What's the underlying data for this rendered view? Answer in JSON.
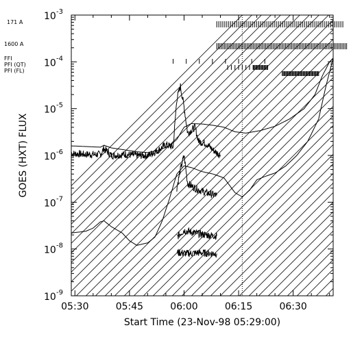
{
  "chart_data": {
    "type": "line",
    "title": "",
    "xlabel": "Start Time (23-Nov-98 05:29:00)",
    "ylabel": "GOES (HXT) FLUX",
    "x_unit": "minutes (UT)",
    "xlim": [
      "05:29",
      "06:41"
    ],
    "ylim": [
      1e-09,
      0.001
    ],
    "yscale": "log",
    "grid": false,
    "x_ticks": [
      "05:30",
      "05:45",
      "06:00",
      "06:15",
      "06:30"
    ],
    "y_ticks": [
      {
        "base": "10",
        "exp": "-9",
        "value": 1e-09
      },
      {
        "base": "10",
        "exp": "-8",
        "value": 1e-08
      },
      {
        "base": "10",
        "exp": "-7",
        "value": 1e-07
      },
      {
        "base": "10",
        "exp": "-6",
        "value": 1e-06
      },
      {
        "base": "10",
        "exp": "-5",
        "value": 1e-05
      },
      {
        "base": "10",
        "exp": "-4",
        "value": 0.0001
      },
      {
        "base": "10",
        "exp": "-3",
        "value": 0.001
      }
    ],
    "coverage_rows": [
      {
        "label": "171 A"
      },
      {
        "label": "1600 A"
      },
      {
        "label": "FFI"
      },
      {
        "label": "PFI (QT)"
      },
      {
        "label": "PFI (FL)"
      }
    ],
    "data_gap_start": "06:16",
    "series": [
      {
        "style": "solid",
        "points": [
          [
            "05:29",
            1.6e-06
          ],
          [
            "05:33",
            1.55e-06
          ],
          [
            "05:37",
            1.5e-06
          ],
          [
            "05:38",
            1.65e-06
          ],
          [
            "05:40",
            1.45e-06
          ],
          [
            "05:44",
            1.3e-06
          ],
          [
            "05:47",
            1.2e-06
          ],
          [
            "05:50",
            1.15e-06
          ],
          [
            "05:53",
            1.3e-06
          ],
          [
            "05:56",
            1.6e-06
          ],
          [
            "05:58",
            2.2e-06
          ],
          [
            "06:00",
            4e-06
          ],
          [
            "06:02",
            4.8e-06
          ],
          [
            "06:05",
            4.7e-06
          ],
          [
            "06:08",
            4.4e-06
          ],
          [
            "06:11",
            4e-06
          ],
          [
            "06:14",
            3.2e-06
          ],
          [
            "06:17",
            3e-06
          ],
          [
            "06:21",
            3.4e-06
          ],
          [
            "06:25",
            4.2e-06
          ],
          [
            "06:29",
            6e-06
          ],
          [
            "06:33",
            1e-05
          ],
          [
            "06:36",
            2e-05
          ],
          [
            "06:38",
            5e-05
          ],
          [
            "06:40",
            0.0001
          ],
          [
            "06:41",
            0.00012
          ]
        ]
      },
      {
        "style": "solid",
        "points": [
          [
            "05:29",
            2.2e-08
          ],
          [
            "05:33",
            2.4e-08
          ],
          [
            "05:35",
            2.8e-08
          ],
          [
            "05:37",
            3.8e-08
          ],
          [
            "05:38",
            4e-08
          ],
          [
            "05:40",
            3e-08
          ],
          [
            "05:43",
            2.2e-08
          ],
          [
            "05:45",
            1.5e-08
          ],
          [
            "05:47",
            1.2e-08
          ],
          [
            "05:50",
            1.35e-08
          ],
          [
            "05:52",
            1.8e-08
          ],
          [
            "05:54",
            4e-08
          ],
          [
            "05:56",
            1.2e-07
          ],
          [
            "05:58",
            4e-07
          ],
          [
            "06:00",
            6e-07
          ],
          [
            "06:02",
            5.5e-07
          ],
          [
            "06:05",
            4.5e-07
          ],
          [
            "06:08",
            4e-07
          ],
          [
            "06:11",
            3.3e-07
          ],
          [
            "06:14",
            1.6e-07
          ],
          [
            "06:16",
            1.3e-07
          ],
          [
            "06:18",
            1.8e-07
          ],
          [
            "06:20",
            3e-07
          ],
          [
            "06:22",
            3.5e-07
          ],
          [
            "06:25",
            4.2e-07
          ],
          [
            "06:28",
            6e-07
          ],
          [
            "06:31",
            1e-06
          ],
          [
            "06:34",
            2e-06
          ],
          [
            "06:37",
            6e-06
          ],
          [
            "06:39",
            3e-05
          ],
          [
            "06:41",
            0.00012
          ]
        ]
      },
      {
        "style": "noisy",
        "points": [
          [
            "05:29",
            1.1e-06
          ],
          [
            "05:33",
            1.05e-06
          ],
          [
            "05:37",
            1.05e-06
          ],
          [
            "05:38",
            1.4e-06
          ],
          [
            "05:40",
            1e-06
          ],
          [
            "05:44",
            1.05e-06
          ],
          [
            "05:47",
            1e-06
          ],
          [
            "05:50",
            1e-06
          ],
          [
            "05:53",
            1.3e-06
          ],
          [
            "05:55",
            1.7e-06
          ],
          [
            "05:57",
            1.5e-06
          ],
          [
            "05:58",
            1.6e-05
          ],
          [
            "05:59",
            3e-05
          ],
          [
            "06:00",
            1.1e-05
          ],
          [
            "06:01",
            3e-06
          ],
          [
            "06:03",
            4e-06
          ],
          [
            "06:04",
            2e-06
          ],
          [
            "06:06",
            1.8e-06
          ],
          [
            "06:08",
            1.3e-06
          ],
          [
            "06:10",
            1e-06
          ]
        ]
      },
      {
        "style": "noisy",
        "points": [
          [
            "05:58",
            2e-07
          ],
          [
            "05:59",
            5e-07
          ],
          [
            "06:00",
            1e-06
          ],
          [
            "06:01",
            2.5e-07
          ],
          [
            "06:03",
            2e-07
          ],
          [
            "06:06",
            1.6e-07
          ],
          [
            "06:09",
            1.4e-07
          ]
        ]
      },
      {
        "style": "noisy",
        "points": [
          [
            "05:58",
            1.8e-08
          ],
          [
            "06:00",
            2.5e-08
          ],
          [
            "06:03",
            2.2e-08
          ],
          [
            "06:06",
            2e-08
          ],
          [
            "06:09",
            1.9e-08
          ]
        ]
      },
      {
        "style": "noisy",
        "points": [
          [
            "05:58",
            8.5e-09
          ],
          [
            "06:01",
            8e-09
          ],
          [
            "06:04",
            8.3e-09
          ],
          [
            "06:07",
            8.1e-09
          ],
          [
            "06:09",
            8e-09
          ]
        ]
      }
    ]
  }
}
